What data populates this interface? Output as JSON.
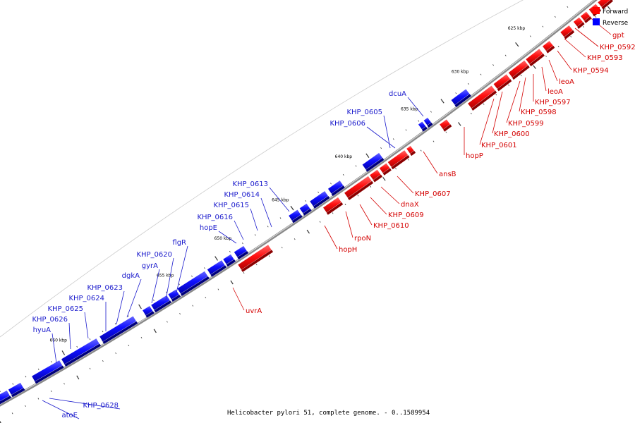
{
  "caption": "Helicobacter pylori 51, complete genome. - 0..1589954",
  "legend": [
    {
      "label": "Forward",
      "color": "#ff0000"
    },
    {
      "label": "Reverse",
      "color": "#0000ff"
    }
  ],
  "colors": {
    "forward": "#ff0000",
    "reverse": "#0000ff",
    "backbone": "#777777"
  },
  "kbp_labels": [
    "625 kbp",
    "630 kbp",
    "635 kbp",
    "640 kbp",
    "645 kbp",
    "650 kbp",
    "655 kbp",
    "660 kbp"
  ],
  "forward_genes": [
    "gpt",
    "KHP_0592",
    "KHP_0593",
    "KHP_0594",
    "leoA",
    "leoA",
    "KHP_0597",
    "KHP_0598",
    "KHP_0599",
    "KHP_0600",
    "KHP_0601",
    "hopP",
    "ansB",
    "KHP_0607",
    "dnaX",
    "KHP_0609",
    "KHP_0610",
    "rpoN",
    "hopH",
    "uvrA"
  ],
  "reverse_genes": [
    "dcuA",
    "KHP_0605",
    "KHP_0606",
    "KHP_0613",
    "KHP_0614",
    "KHP_0615",
    "KHP_0616",
    "hopE",
    "flgR",
    "KHP_0620",
    "gyrA",
    "dgkA",
    "KHP_0623",
    "KHP_0624",
    "KHP_0625",
    "KHP_0626",
    "hyuA",
    "KHP_0628",
    "atoE"
  ]
}
